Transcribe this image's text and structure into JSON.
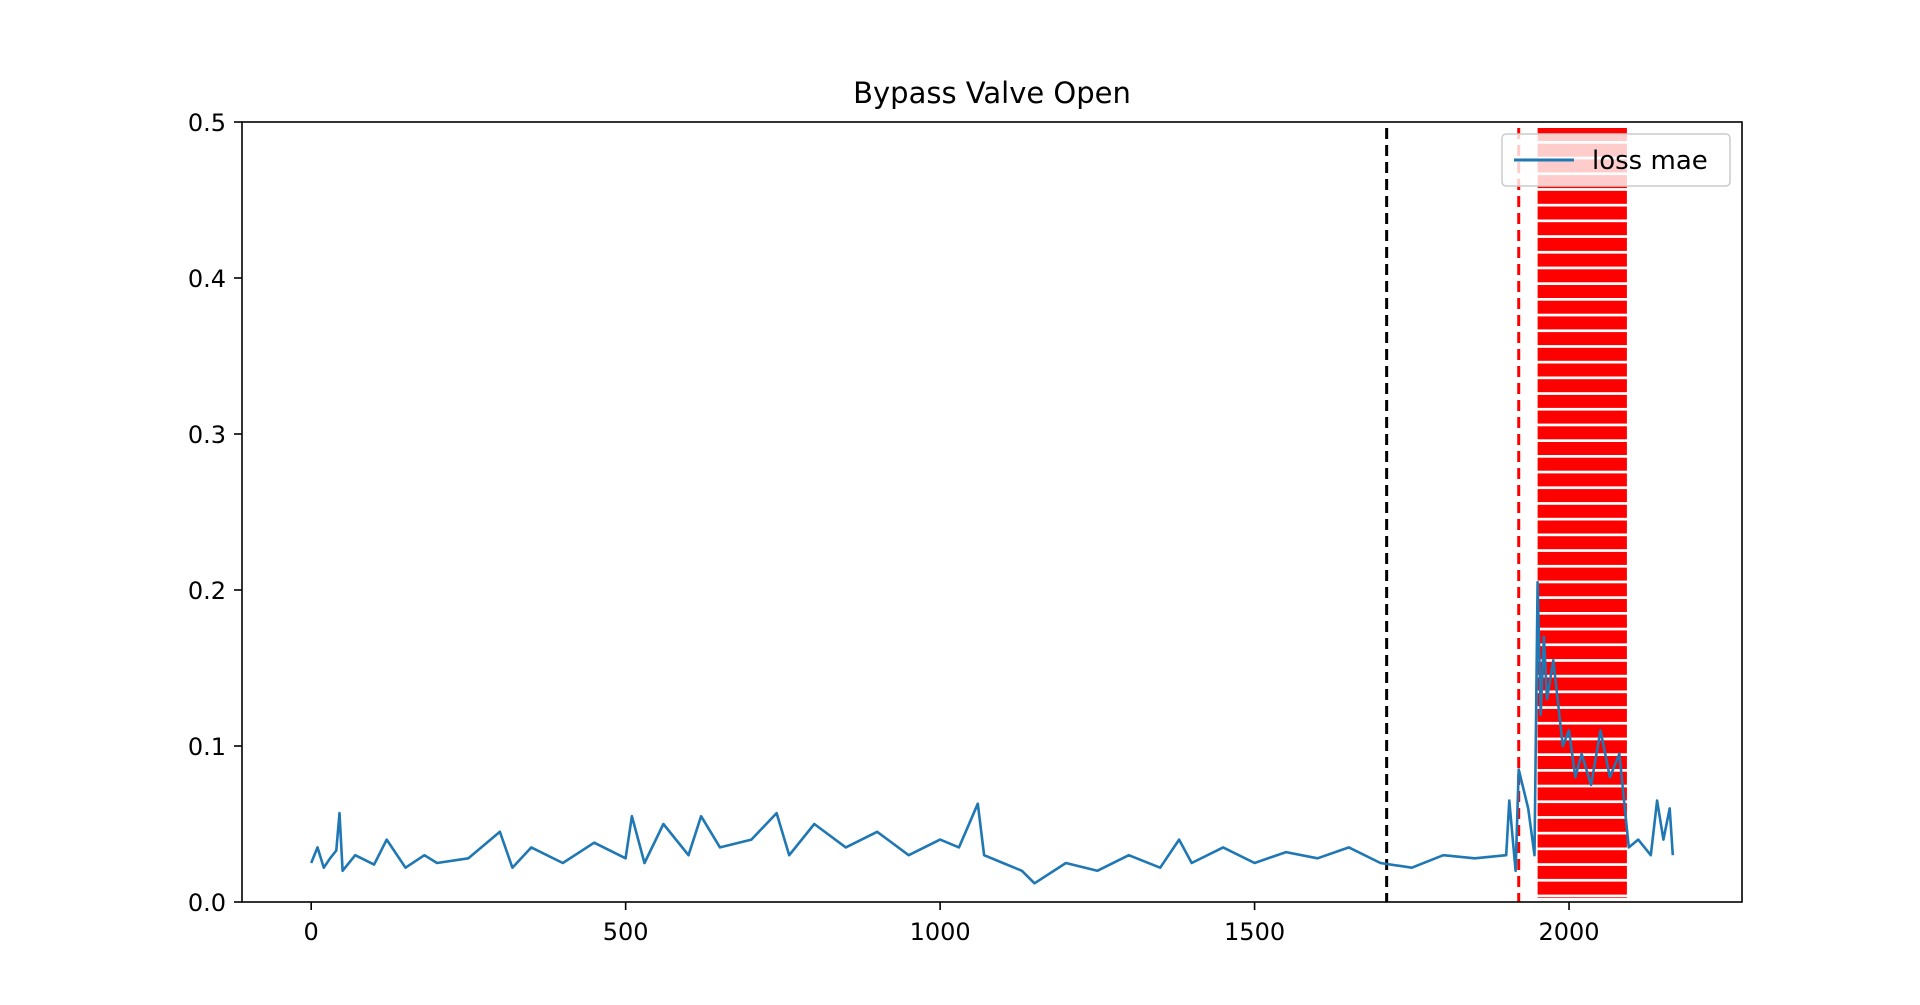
{
  "chart_data": {
    "type": "line",
    "title": "Bypass Valve Open",
    "xlabel": "",
    "ylabel": "",
    "xlim": [
      -110,
      2275
    ],
    "ylim": [
      0.0,
      0.5
    ],
    "x_ticks": [
      0,
      500,
      1000,
      1500,
      2000
    ],
    "x_tick_labels": [
      "0",
      "500",
      "1000",
      "1500",
      "2000"
    ],
    "y_ticks": [
      0.0,
      0.1,
      0.2,
      0.3,
      0.4,
      0.5
    ],
    "y_tick_labels": [
      "0.0",
      "0.1",
      "0.2",
      "0.3",
      "0.4",
      "0.5"
    ],
    "grid": false,
    "legend": {
      "position": "top-right",
      "entries": [
        "loss mae"
      ]
    },
    "series": [
      {
        "name": "loss mae",
        "color": "#1f77b4",
        "points": [
          [
            0,
            0.025
          ],
          [
            10,
            0.035
          ],
          [
            20,
            0.022
          ],
          [
            30,
            0.028
          ],
          [
            40,
            0.033
          ],
          [
            45,
            0.057
          ],
          [
            50,
            0.02
          ],
          [
            70,
            0.03
          ],
          [
            100,
            0.024
          ],
          [
            120,
            0.04
          ],
          [
            150,
            0.022
          ],
          [
            180,
            0.03
          ],
          [
            200,
            0.025
          ],
          [
            250,
            0.028
          ],
          [
            300,
            0.045
          ],
          [
            320,
            0.022
          ],
          [
            350,
            0.035
          ],
          [
            400,
            0.025
          ],
          [
            450,
            0.038
          ],
          [
            500,
            0.028
          ],
          [
            510,
            0.055
          ],
          [
            530,
            0.025
          ],
          [
            560,
            0.05
          ],
          [
            600,
            0.03
          ],
          [
            620,
            0.055
          ],
          [
            650,
            0.035
          ],
          [
            700,
            0.04
          ],
          [
            740,
            0.057
          ],
          [
            760,
            0.03
          ],
          [
            800,
            0.05
          ],
          [
            850,
            0.035
          ],
          [
            900,
            0.045
          ],
          [
            950,
            0.03
          ],
          [
            1000,
            0.04
          ],
          [
            1030,
            0.035
          ],
          [
            1060,
            0.063
          ],
          [
            1070,
            0.03
          ],
          [
            1100,
            0.025
          ],
          [
            1130,
            0.02
          ],
          [
            1150,
            0.012
          ],
          [
            1200,
            0.025
          ],
          [
            1250,
            0.02
          ],
          [
            1300,
            0.03
          ],
          [
            1350,
            0.022
          ],
          [
            1380,
            0.04
          ],
          [
            1400,
            0.025
          ],
          [
            1450,
            0.035
          ],
          [
            1500,
            0.025
          ],
          [
            1550,
            0.032
          ],
          [
            1600,
            0.028
          ],
          [
            1650,
            0.035
          ],
          [
            1700,
            0.025
          ],
          [
            1750,
            0.022
          ],
          [
            1800,
            0.03
          ],
          [
            1850,
            0.028
          ],
          [
            1900,
            0.03
          ],
          [
            1905,
            0.065
          ],
          [
            1915,
            0.02
          ],
          [
            1920,
            0.085
          ],
          [
            1935,
            0.06
          ],
          [
            1945,
            0.03
          ],
          [
            1950,
            0.205
          ],
          [
            1955,
            0.12
          ],
          [
            1960,
            0.17
          ],
          [
            1965,
            0.13
          ],
          [
            1975,
            0.155
          ],
          [
            1990,
            0.1
          ],
          [
            2000,
            0.11
          ],
          [
            2010,
            0.08
          ],
          [
            2020,
            0.095
          ],
          [
            2035,
            0.075
          ],
          [
            2050,
            0.11
          ],
          [
            2065,
            0.08
          ],
          [
            2080,
            0.095
          ],
          [
            2090,
            0.055
          ],
          [
            2095,
            0.035
          ],
          [
            2110,
            0.04
          ],
          [
            2130,
            0.03
          ],
          [
            2140,
            0.065
          ],
          [
            2150,
            0.04
          ],
          [
            2160,
            0.06
          ],
          [
            2165,
            0.03
          ]
        ]
      }
    ],
    "reference_lines": [
      {
        "x": 1710,
        "color": "#000000",
        "style": "dashed"
      },
      {
        "x": 1920,
        "color": "#ff0000",
        "style": "dashed"
      }
    ],
    "anomaly_band": {
      "x_start": 1950,
      "x_end": 2092,
      "color": "#ff0000"
    }
  }
}
